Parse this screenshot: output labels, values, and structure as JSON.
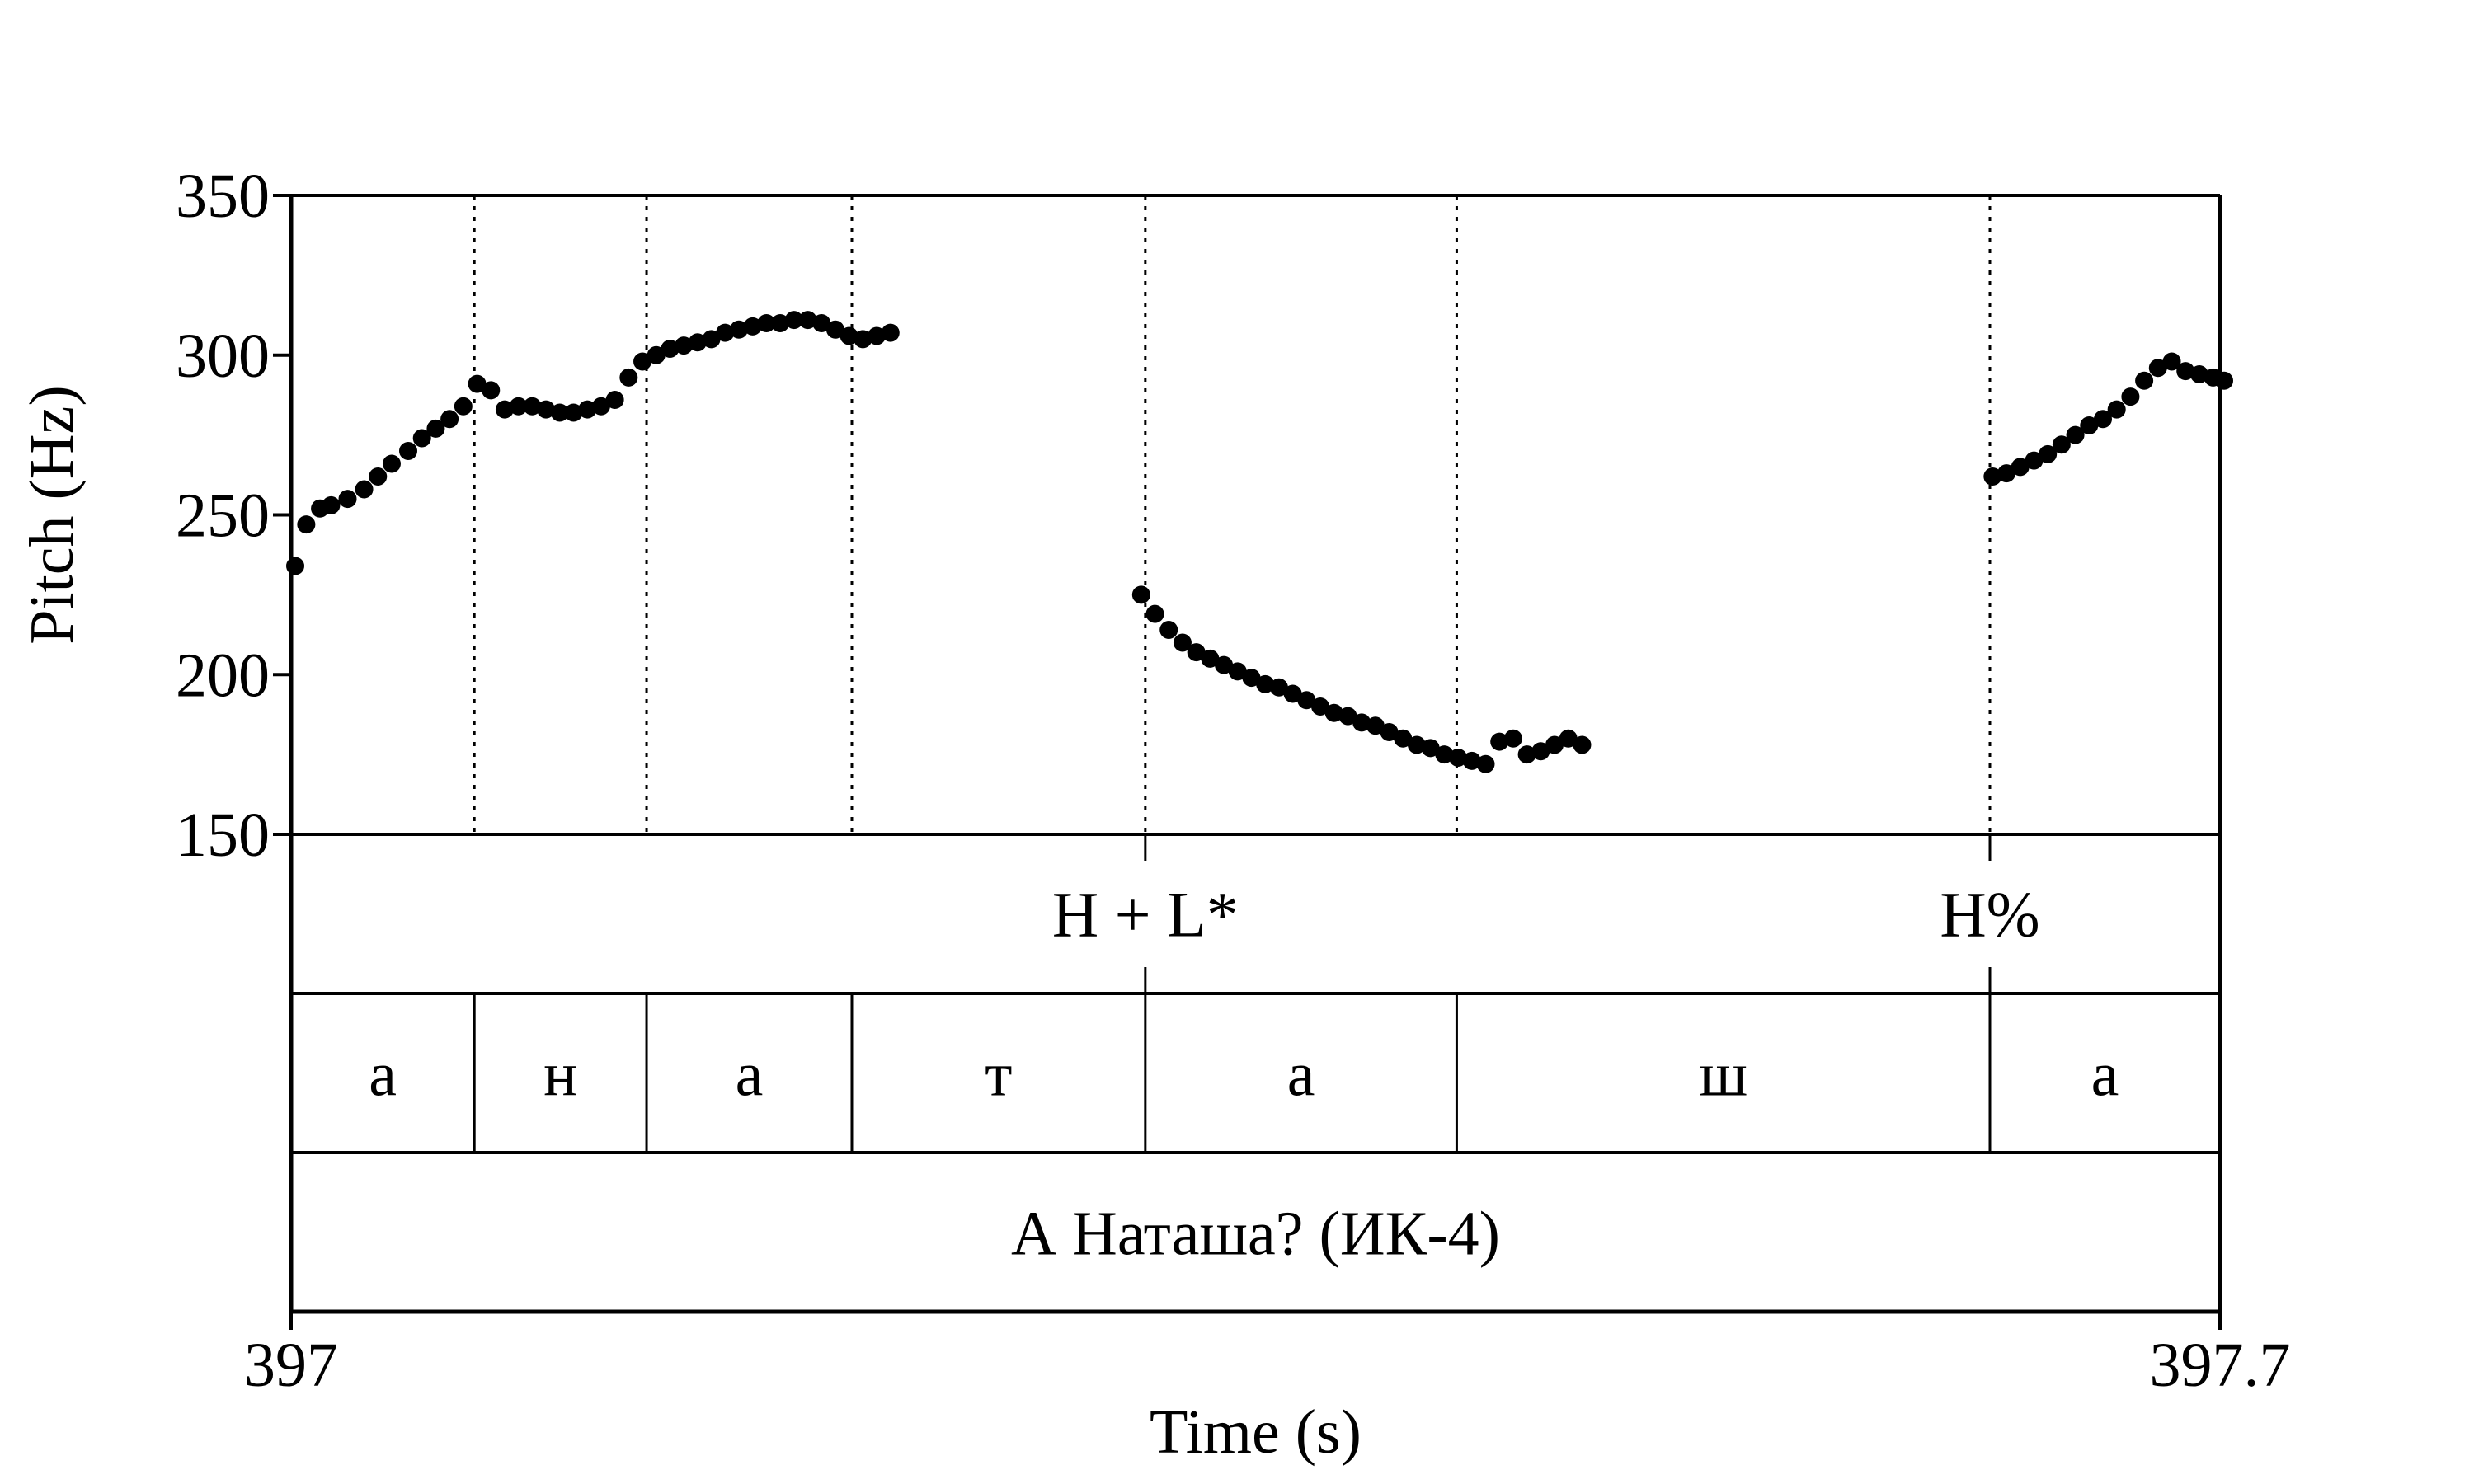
{
  "chart_data": {
    "type": "scatter",
    "title": "",
    "xlabel": "Time (s)",
    "ylabel": "Pitch (Hz)",
    "xlim": [
      397,
      397.7
    ],
    "ylim": [
      150,
      350
    ],
    "x_tick_labels": [
      "397",
      "397.7"
    ],
    "y_ticks": [
      150,
      200,
      250,
      300,
      350
    ],
    "y_tick_labels": [
      "150",
      "200",
      "250",
      "300",
      "350"
    ],
    "grid": false,
    "legend": "none",
    "marker_color": "#000000",
    "series": [
      {
        "points": [
          [
            397.0015,
            234
          ],
          [
            397.0055,
            247
          ],
          [
            397.0105,
            252
          ],
          [
            397.0145,
            253
          ],
          [
            397.0205,
            255
          ],
          [
            397.0265,
            258
          ],
          [
            397.0315,
            262
          ],
          [
            397.0365,
            266
          ],
          [
            397.0425,
            270
          ],
          [
            397.0475,
            274
          ],
          [
            397.0525,
            277
          ],
          [
            397.0575,
            280
          ],
          [
            397.0625,
            284
          ],
          [
            397.0675,
            291
          ],
          [
            397.0725,
            289
          ],
          [
            397.0775,
            283
          ],
          [
            397.0825,
            284
          ],
          [
            397.0875,
            284
          ],
          [
            397.0925,
            283
          ],
          [
            397.0975,
            282
          ],
          [
            397.1025,
            282
          ],
          [
            397.1075,
            283
          ],
          [
            397.1125,
            284
          ],
          [
            397.1175,
            286
          ],
          [
            397.1225,
            293
          ],
          [
            397.1275,
            298
          ],
          [
            397.1325,
            300
          ],
          [
            397.1375,
            302
          ],
          [
            397.1425,
            303
          ],
          [
            397.1475,
            304
          ],
          [
            397.1525,
            305
          ],
          [
            397.1575,
            307
          ],
          [
            397.1625,
            308
          ],
          [
            397.1675,
            309
          ],
          [
            397.1725,
            310
          ],
          [
            397.1775,
            310
          ],
          [
            397.1825,
            311
          ],
          [
            397.1875,
            311
          ],
          [
            397.1925,
            310
          ],
          [
            397.1975,
            308
          ],
          [
            397.2025,
            306
          ],
          [
            397.2075,
            305
          ],
          [
            397.2125,
            306
          ],
          [
            397.2175,
            307
          ],
          [
            397.3085,
            225
          ],
          [
            397.3135,
            219
          ],
          [
            397.3185,
            214
          ],
          [
            397.3235,
            210
          ],
          [
            397.3285,
            207
          ],
          [
            397.3335,
            205
          ],
          [
            397.3385,
            203
          ],
          [
            397.3435,
            201
          ],
          [
            397.3485,
            199
          ],
          [
            397.3535,
            197
          ],
          [
            397.3585,
            196
          ],
          [
            397.3635,
            194
          ],
          [
            397.3685,
            192
          ],
          [
            397.3735,
            190
          ],
          [
            397.3785,
            188
          ],
          [
            397.3835,
            187
          ],
          [
            397.3885,
            185
          ],
          [
            397.3935,
            184
          ],
          [
            397.3985,
            182
          ],
          [
            397.4035,
            180
          ],
          [
            397.4085,
            178
          ],
          [
            397.4135,
            177
          ],
          [
            397.4185,
            175
          ],
          [
            397.4235,
            174
          ],
          [
            397.4285,
            173
          ],
          [
            397.4335,
            172
          ],
          [
            397.4385,
            179
          ],
          [
            397.4435,
            180
          ],
          [
            397.4485,
            175
          ],
          [
            397.4535,
            176
          ],
          [
            397.4585,
            178
          ],
          [
            397.4635,
            180
          ],
          [
            397.4685,
            178
          ],
          [
            397.6175,
            262
          ],
          [
            397.6225,
            263
          ],
          [
            397.6275,
            265
          ],
          [
            397.6325,
            267
          ],
          [
            397.6375,
            269
          ],
          [
            397.6425,
            272
          ],
          [
            397.6475,
            275
          ],
          [
            397.6525,
            278
          ],
          [
            397.6575,
            280
          ],
          [
            397.6625,
            283
          ],
          [
            397.6675,
            287
          ],
          [
            397.6725,
            292
          ],
          [
            397.6775,
            296
          ],
          [
            397.6825,
            298
          ],
          [
            397.6875,
            295
          ],
          [
            397.6925,
            294
          ],
          [
            397.6975,
            293
          ],
          [
            397.7015,
            292
          ]
        ]
      }
    ],
    "tiers": [
      {
        "type": "point",
        "name": "",
        "items": [
          {
            "time": 397.31,
            "label": "H + L*"
          },
          {
            "time": 397.6165,
            "label": "H%"
          }
        ]
      },
      {
        "type": "interval",
        "name": "",
        "boundaries": [
          397.0,
          397.0665,
          397.129,
          397.2035,
          397.31,
          397.423,
          397.6165,
          397.7
        ],
        "labels": [
          "а",
          "н",
          "а",
          "т",
          "а",
          "ш",
          "а"
        ]
      },
      {
        "type": "interval",
        "name": "",
        "boundaries": [
          397.0,
          397.7
        ],
        "labels": [
          "А Наташа? (ИК-4)"
        ]
      }
    ],
    "dotted_boundaries": [
      397.0665,
      397.129,
      397.2035,
      397.31,
      397.423,
      397.6165
    ]
  }
}
